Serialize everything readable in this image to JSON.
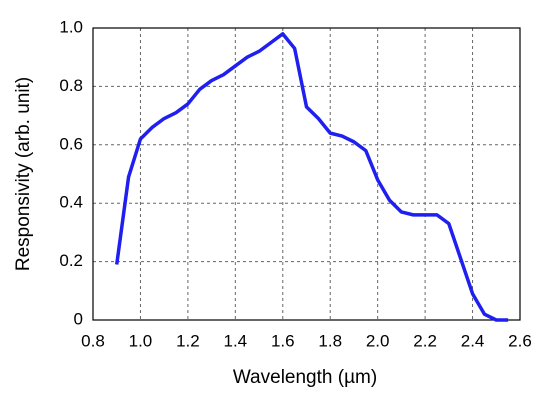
{
  "chart_data": {
    "type": "line",
    "x_label": "Wavelength (µm)",
    "y_label": "Responsivity (arb. unit)",
    "series": [
      {
        "name": "Responsivity",
        "color": "#1f1fef",
        "x": [
          0.9,
          0.95,
          1.0,
          1.05,
          1.1,
          1.15,
          1.2,
          1.25,
          1.3,
          1.35,
          1.4,
          1.45,
          1.5,
          1.55,
          1.6,
          1.65,
          1.7,
          1.75,
          1.8,
          1.85,
          1.9,
          1.95,
          2.0,
          2.05,
          2.1,
          2.15,
          2.2,
          2.25,
          2.3,
          2.35,
          2.4,
          2.45,
          2.5,
          2.55
        ],
        "values": [
          0.19,
          0.49,
          0.62,
          0.66,
          0.69,
          0.71,
          0.74,
          0.79,
          0.82,
          0.84,
          0.87,
          0.9,
          0.92,
          0.95,
          0.98,
          0.93,
          0.73,
          0.69,
          0.64,
          0.63,
          0.61,
          0.58,
          0.48,
          0.41,
          0.37,
          0.36,
          0.36,
          0.36,
          0.33,
          0.21,
          0.09,
          0.02,
          0,
          0
        ]
      }
    ],
    "xlim": [
      0.8,
      2.6
    ],
    "xticks": [
      0.8,
      {
        "value": 1,
        "label": "1.0"
      },
      1.2,
      1.4,
      1.6,
      1.8,
      {
        "value": 2,
        "label": "2.0"
      },
      2.2,
      2.4,
      2.6
    ],
    "ylim": [
      0,
      1
    ],
    "yticks": [
      0,
      0.2,
      0.4,
      0.6,
      0.8,
      {
        "value": 1,
        "label": "1.0"
      }
    ],
    "grid": true
  }
}
